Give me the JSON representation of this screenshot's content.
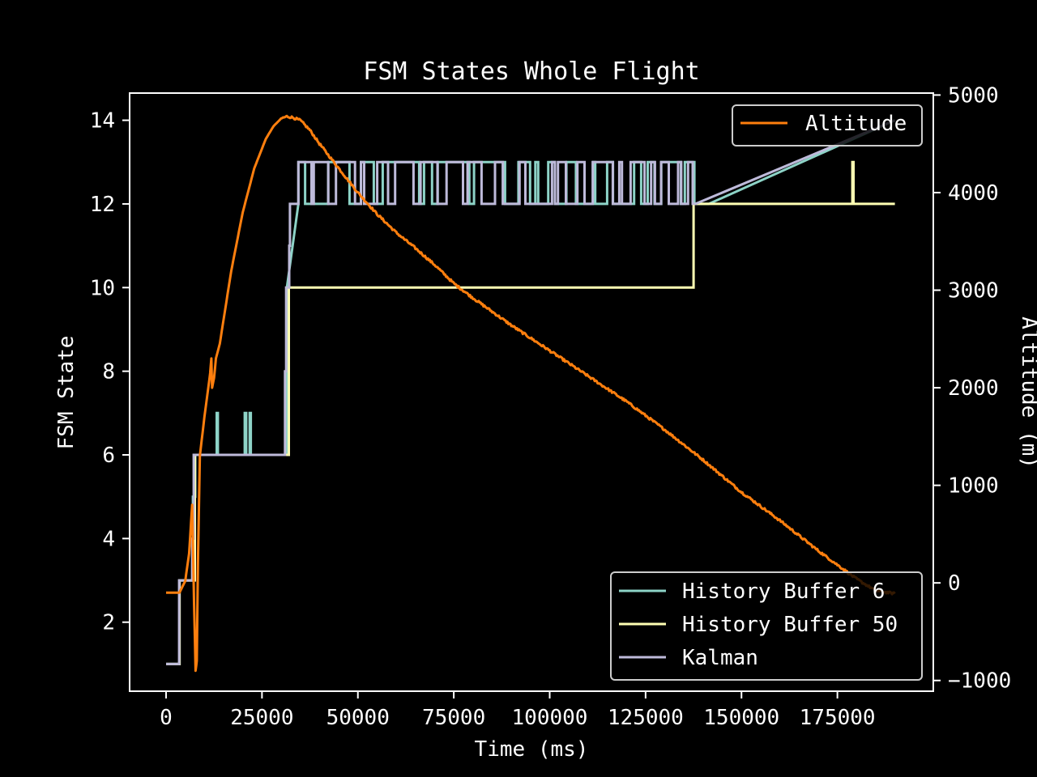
{
  "chart_data": {
    "type": "line",
    "title": "FSM States Whole Flight",
    "xlabel": "Time (ms)",
    "ylabel": "FSM State",
    "y2label": "Altitude (m)",
    "xlim": [
      -9500,
      200000
    ],
    "ylim": [
      0.35,
      14.65
    ],
    "y2lim": [
      -1110,
      5020
    ],
    "x_ticks": [
      "0",
      "25000",
      "50000",
      "75000",
      "100000",
      "125000",
      "150000",
      "175000"
    ],
    "x_tick_values": [
      0,
      25000,
      50000,
      75000,
      100000,
      125000,
      150000,
      175000
    ],
    "y_ticks": [
      "2",
      "4",
      "6",
      "8",
      "10",
      "12",
      "14"
    ],
    "y_tick_values": [
      2,
      4,
      6,
      8,
      10,
      12,
      14
    ],
    "y2_ticks": [
      "5000",
      "4000",
      "3000",
      "2000",
      "1000",
      "0",
      "−1000"
    ],
    "y2_tick_values": [
      5000,
      4000,
      3000,
      2000,
      1000,
      0,
      -1000
    ],
    "grid": false,
    "legend_top_right": [
      "Altitude"
    ],
    "legend_bottom_right": [
      "History Buffer 6",
      "History Buffer 50",
      "Kalman"
    ],
    "series": [
      {
        "name": "History Buffer 6",
        "axis": "left",
        "color": "#8dd3c7",
        "step": true,
        "points": [
          [
            0,
            1
          ],
          [
            3500,
            1
          ],
          [
            3500,
            3
          ],
          [
            7000,
            3
          ],
          [
            7000,
            5
          ],
          [
            7600,
            5
          ],
          [
            7600,
            6
          ],
          [
            13200,
            6
          ],
          [
            13200,
            7
          ],
          [
            13500,
            7
          ],
          [
            13500,
            6
          ],
          [
            20500,
            6
          ],
          [
            20500,
            7
          ],
          [
            20900,
            7
          ],
          [
            20900,
            6
          ],
          [
            21800,
            6
          ],
          [
            21800,
            7
          ],
          [
            22100,
            7
          ],
          [
            22100,
            6
          ],
          [
            31500,
            6
          ],
          [
            31500,
            10
          ],
          [
            36000,
            10
          ],
          [
            36000,
            12
          ],
          [
            36500,
            12
          ],
          [
            36500,
            13
          ],
          [
            37000,
            13
          ],
          [
            37000,
            12
          ],
          [
            141500,
            12
          ],
          [
            141500,
            14
          ],
          [
            190000,
            14
          ]
        ],
        "oscillation": {
          "from": 34500,
          "to": 141500,
          "low": 12,
          "high": 13
        }
      },
      {
        "name": "History Buffer 50",
        "axis": "left",
        "color": "#ffffb3",
        "step": true,
        "points": [
          [
            0,
            1
          ],
          [
            3500,
            1
          ],
          [
            3500,
            3
          ],
          [
            7500,
            3
          ],
          [
            7500,
            6
          ],
          [
            32000,
            6
          ],
          [
            32000,
            10
          ],
          [
            137500,
            10
          ],
          [
            137500,
            12
          ],
          [
            178900,
            12
          ],
          [
            178900,
            13
          ],
          [
            179200,
            13
          ],
          [
            179200,
            12
          ],
          [
            190000,
            12
          ]
        ]
      },
      {
        "name": "Kalman",
        "axis": "left",
        "color": "#bebada",
        "step": true,
        "points": [
          [
            0,
            1
          ],
          [
            3400,
            1
          ],
          [
            3400,
            3
          ],
          [
            6800,
            3
          ],
          [
            6800,
            4
          ],
          [
            7200,
            4
          ],
          [
            7200,
            6
          ],
          [
            31000,
            6
          ],
          [
            31000,
            8
          ],
          [
            31300,
            8
          ],
          [
            31300,
            10
          ],
          [
            32100,
            10
          ],
          [
            32100,
            11
          ],
          [
            32300,
            11
          ],
          [
            32300,
            12
          ],
          [
            137000,
            12
          ],
          [
            137000,
            14
          ],
          [
            190000,
            14
          ]
        ],
        "oscillation": {
          "from": 34500,
          "to": 138000,
          "low": 12,
          "high": 13
        }
      },
      {
        "name": "Altitude",
        "axis": "right",
        "color": "#ff7f0e",
        "step": false,
        "points": [
          [
            0,
            -100
          ],
          [
            3000,
            -100
          ],
          [
            3500,
            -100
          ],
          [
            5000,
            20
          ],
          [
            6000,
            300
          ],
          [
            6800,
            800
          ],
          [
            7300,
            -200
          ],
          [
            7700,
            -900
          ],
          [
            8000,
            -800
          ],
          [
            8300,
            200
          ],
          [
            8800,
            1300
          ],
          [
            10000,
            1700
          ],
          [
            11000,
            2000
          ],
          [
            11500,
            2150
          ],
          [
            11800,
            2300
          ],
          [
            12000,
            2000
          ],
          [
            12500,
            2100
          ],
          [
            13000,
            2300
          ],
          [
            14000,
            2450
          ],
          [
            15000,
            2700
          ],
          [
            17000,
            3200
          ],
          [
            20000,
            3800
          ],
          [
            23000,
            4250
          ],
          [
            26000,
            4550
          ],
          [
            28000,
            4680
          ],
          [
            30000,
            4760
          ],
          [
            31500,
            4780
          ],
          [
            33000,
            4770
          ],
          [
            35000,
            4740
          ],
          [
            37500,
            4640
          ],
          [
            40000,
            4500
          ],
          [
            45000,
            4250
          ],
          [
            50000,
            4000
          ],
          [
            55000,
            3780
          ],
          [
            60000,
            3590
          ],
          [
            65000,
            3430
          ],
          [
            70000,
            3260
          ],
          [
            75000,
            3070
          ],
          [
            80000,
            2920
          ],
          [
            90000,
            2640
          ],
          [
            100000,
            2380
          ],
          [
            110000,
            2120
          ],
          [
            120000,
            1860
          ],
          [
            130000,
            1570
          ],
          [
            140000,
            1260
          ],
          [
            150000,
            930
          ],
          [
            160000,
            640
          ],
          [
            170000,
            330
          ],
          [
            180000,
            40
          ],
          [
            185000,
            -80
          ],
          [
            190000,
            -110
          ]
        ],
        "noise": 12
      }
    ]
  }
}
